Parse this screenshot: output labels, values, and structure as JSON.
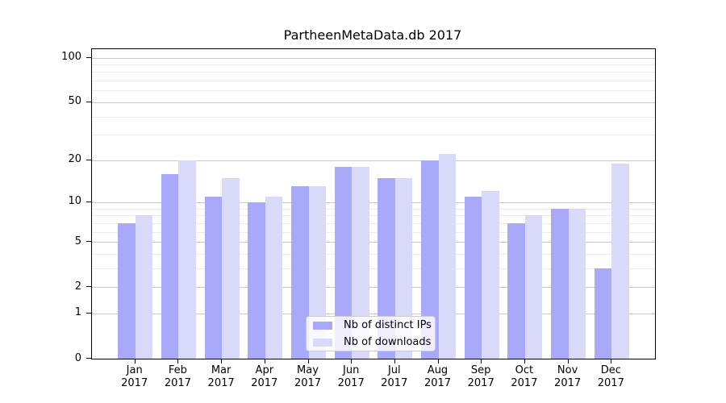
{
  "chart_data": {
    "type": "bar",
    "title": "PartheenMetaData.db 2017",
    "categories": [
      "Jan",
      "Feb",
      "Mar",
      "Apr",
      "May",
      "Jun",
      "Jul",
      "Aug",
      "Sep",
      "Oct",
      "Nov",
      "Dec"
    ],
    "category_year": "2017",
    "series": [
      {
        "name": "Nb of distinct IPs",
        "color": "#a9a9f9",
        "values": [
          7,
          16,
          11,
          10,
          13,
          18,
          15,
          20,
          11,
          7,
          9,
          3
        ]
      },
      {
        "name": "Nb of downloads",
        "color": "#d9d9fa",
        "values": [
          8,
          20,
          15,
          11,
          13,
          18,
          15,
          22,
          12,
          8,
          9,
          19
        ]
      }
    ],
    "yscale": "log1p",
    "ylim": [
      0,
      114
    ],
    "yticks": [
      100,
      50,
      20,
      10,
      5,
      2,
      1,
      0
    ],
    "minor_gridlines": [
      3,
      4,
      6,
      7,
      8,
      9,
      30,
      40,
      60,
      70,
      80,
      90
    ],
    "grid": true,
    "legend_position": "lower center-right inside plot",
    "colors": {
      "major_grid": "#c9c9c9",
      "minor_grid": "#ededed",
      "spine": "#000000",
      "background": "#ffffff",
      "text": "#000000"
    }
  }
}
